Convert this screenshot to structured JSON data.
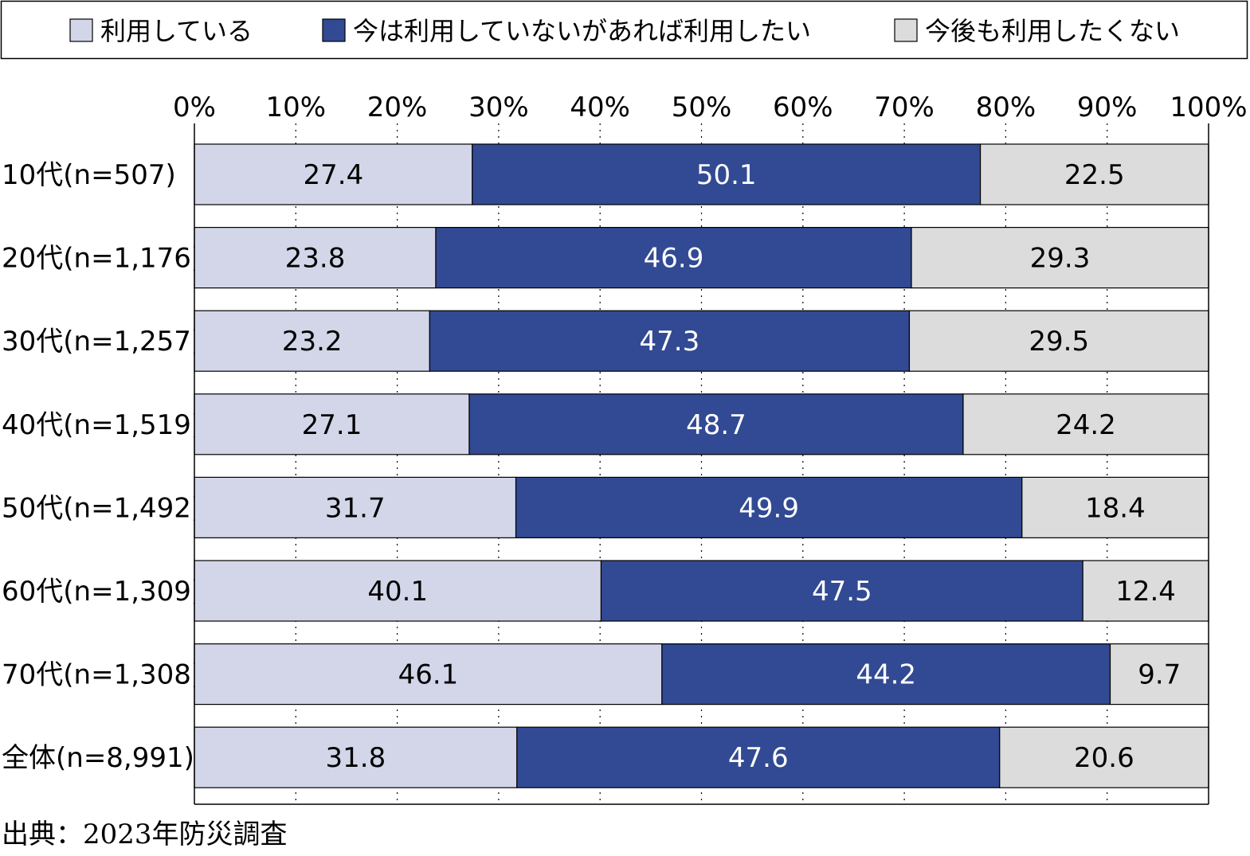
{
  "chart_data": {
    "type": "bar",
    "orientation": "horizontal",
    "stacked": true,
    "percent_stacked": true,
    "categories": [
      "10代(n=507)",
      "20代(n=1,176)",
      "30代(n=1,257)",
      "40代(n=1,519)",
      "50代(n=1,492)",
      "60代(n=1,309)",
      "70代(n=1,308)",
      "全体(n=8,991)"
    ],
    "series": [
      {
        "name": "利用している",
        "color": "#d3d6e8",
        "text_color": "#000000",
        "values": [
          27.4,
          23.8,
          23.2,
          27.1,
          31.7,
          40.1,
          46.1,
          31.8
        ],
        "labels": [
          "27.4",
          "23.8",
          "23.2",
          "27.1",
          "31.7",
          "40.1",
          "46.1",
          "31.8"
        ]
      },
      {
        "name": "今は利用していないがあれば利用したい",
        "color": "#324a93",
        "text_color": "#ffffff",
        "values": [
          50.1,
          46.9,
          47.3,
          48.7,
          49.9,
          47.5,
          44.2,
          47.6
        ],
        "labels": [
          "50.1",
          "46.9",
          "47.3",
          "48.7",
          "49.9",
          "47.5",
          "44.2",
          "47.6"
        ]
      },
      {
        "name": "今後も利用したくない",
        "color": "#dcdcdc",
        "text_color": "#000000",
        "values": [
          22.5,
          29.3,
          29.5,
          24.2,
          18.4,
          12.4,
          9.7,
          20.6
        ],
        "labels": [
          "22.5",
          "29.3",
          "29.5",
          "24.2",
          "18.4",
          "12.4",
          "9.7",
          "20.6"
        ]
      }
    ],
    "xlim": [
      0,
      100
    ],
    "x_ticks": [
      0,
      10,
      20,
      30,
      40,
      50,
      60,
      70,
      80,
      90,
      100
    ],
    "x_tick_labels": [
      "0%",
      "10%",
      "20%",
      "30%",
      "40%",
      "50%",
      "60%",
      "70%",
      "80%",
      "90%",
      "100%"
    ],
    "tick_axis_position": "top",
    "grid": "vertical dotted",
    "legend_position": "top",
    "title": "",
    "xlabel": "",
    "ylabel": ""
  },
  "source_note": "出典：2023年防災調査"
}
